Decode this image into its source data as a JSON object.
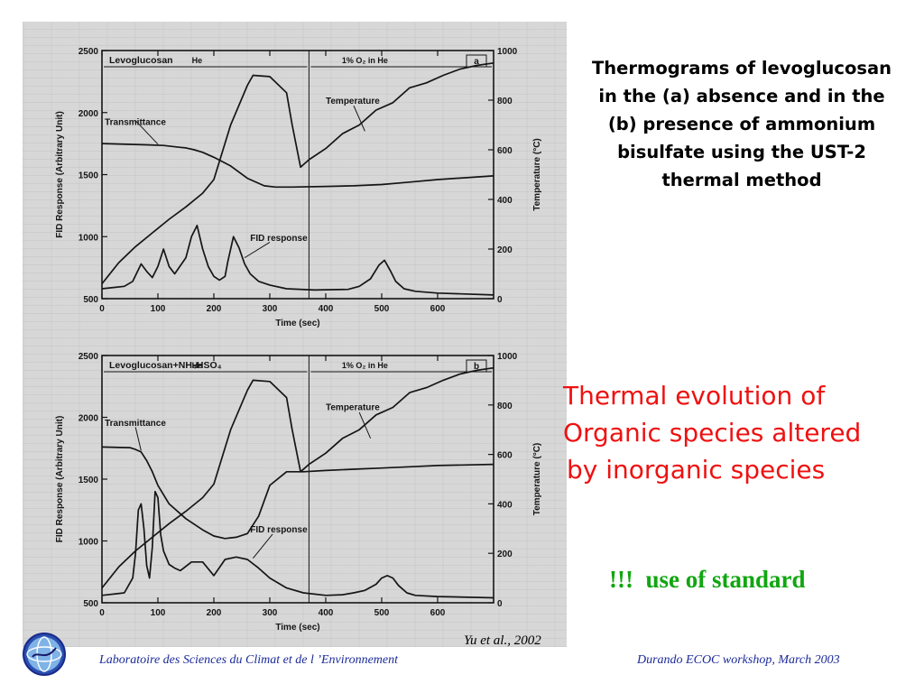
{
  "slide": {
    "title_lines": [
      "Thermograms of levoglucosan",
      "in the (a) absence and in the",
      "(b) presence of ammonium",
      "bisulfate using the UST-2",
      "thermal method"
    ],
    "red_lines": [
      "Thermal evolution of",
      "Organic species altered",
      "by inorganic species"
    ],
    "green_note": "!!!  use of standard",
    "citation": "Yu et al., 2002",
    "footer_left": "Laboratoire des Sciences du Climat et de l ’Environnement",
    "footer_right": "Durando ECOC workshop, March 2003",
    "logo_icon": "lsce-globe-logo-icon",
    "colors": {
      "title": "#000000",
      "red_text": "#ee1111",
      "green_text": "#11a611",
      "footer": "#1a2a9a",
      "scan_bg": "#d7d7d7"
    }
  },
  "chart_data": [
    {
      "type": "line",
      "panel": "a",
      "sample_label": "Levoglucosan",
      "phase_labels": [
        "He",
        "1% O₂ in He"
      ],
      "xlabel": "Time (sec)",
      "ylabel": "FID Response (Arbitrary Unit)",
      "y2label": "Temperature (°C)",
      "xlim": [
        0,
        700
      ],
      "ylim": [
        500,
        2500
      ],
      "y2lim": [
        0,
        1000
      ],
      "xticks": [
        0,
        100,
        200,
        300,
        400,
        500,
        600
      ],
      "yticks": [
        500,
        1000,
        1500,
        2000,
        2500
      ],
      "y2ticks": [
        0,
        200,
        400,
        600,
        800,
        1000
      ],
      "phase_change_x": 370,
      "annotations": [
        "Transmittance",
        "Temperature",
        "FID response"
      ],
      "series": [
        {
          "name": "Transmittance",
          "axis": "y",
          "x": [
            0,
            80,
            110,
            140,
            150,
            165,
            180,
            200,
            230,
            260,
            290,
            310,
            340,
            400,
            450,
            500,
            550,
            600,
            700
          ],
          "y": [
            1750,
            1740,
            1735,
            1720,
            1715,
            1700,
            1680,
            1640,
            1570,
            1470,
            1410,
            1400,
            1400,
            1405,
            1410,
            1420,
            1440,
            1460,
            1490
          ]
        },
        {
          "name": "Temperature",
          "axis": "y2",
          "x": [
            0,
            30,
            60,
            90,
            120,
            150,
            180,
            200,
            230,
            260,
            270,
            300,
            330,
            340,
            355,
            370,
            400,
            430,
            460,
            490,
            520,
            550,
            580,
            610,
            640,
            670,
            700
          ],
          "y": [
            60,
            145,
            210,
            265,
            320,
            370,
            425,
            480,
            700,
            860,
            900,
            895,
            830,
            700,
            530,
            560,
            605,
            665,
            700,
            760,
            790,
            850,
            870,
            900,
            925,
            940,
            950
          ]
        },
        {
          "name": "FID response",
          "axis": "y",
          "x": [
            0,
            40,
            55,
            70,
            80,
            90,
            100,
            110,
            120,
            130,
            150,
            160,
            170,
            180,
            190,
            200,
            210,
            220,
            225,
            235,
            245,
            255,
            265,
            280,
            300,
            330,
            380,
            440,
            460,
            480,
            495,
            505,
            515,
            525,
            540,
            560,
            600,
            700
          ],
          "y": [
            580,
            600,
            640,
            780,
            720,
            670,
            760,
            900,
            760,
            700,
            830,
            1000,
            1090,
            900,
            760,
            680,
            650,
            680,
            800,
            1000,
            910,
            780,
            700,
            640,
            610,
            580,
            570,
            575,
            600,
            660,
            770,
            810,
            730,
            640,
            580,
            560,
            545,
            530
          ]
        }
      ]
    },
    {
      "type": "line",
      "panel": "b",
      "sample_label": "Levoglucosan+NH₄HSO₄",
      "phase_labels": [
        "He",
        "1% O₂ in He"
      ],
      "xlabel": "Time (sec)",
      "ylabel": "FID Response (Arbitrary Unit)",
      "y2label": "Temperature (°C)",
      "xlim": [
        0,
        700
      ],
      "ylim": [
        500,
        2500
      ],
      "y2lim": [
        0,
        1000
      ],
      "xticks": [
        0,
        100,
        200,
        300,
        400,
        500,
        600
      ],
      "yticks": [
        500,
        1000,
        1500,
        2000,
        2500
      ],
      "y2ticks": [
        0,
        200,
        400,
        600,
        800,
        1000
      ],
      "phase_change_x": 370,
      "annotations": [
        "Transmittance",
        "Temperature",
        "FID response"
      ],
      "series": [
        {
          "name": "Transmittance",
          "axis": "y",
          "x": [
            0,
            50,
            60,
            70,
            80,
            90,
            100,
            120,
            150,
            180,
            200,
            220,
            240,
            260,
            280,
            300,
            330,
            360,
            400,
            450,
            500,
            550,
            600,
            700
          ],
          "y": [
            1760,
            1755,
            1740,
            1720,
            1650,
            1560,
            1450,
            1300,
            1180,
            1090,
            1040,
            1020,
            1030,
            1060,
            1200,
            1450,
            1560,
            1560,
            1570,
            1580,
            1590,
            1600,
            1610,
            1620
          ]
        },
        {
          "name": "Temperature",
          "axis": "y2",
          "x": [
            0,
            30,
            60,
            90,
            120,
            150,
            180,
            200,
            230,
            260,
            270,
            300,
            330,
            340,
            355,
            370,
            400,
            430,
            460,
            490,
            520,
            550,
            580,
            610,
            640,
            670,
            700
          ],
          "y": [
            60,
            145,
            210,
            265,
            320,
            370,
            425,
            480,
            700,
            860,
            900,
            895,
            830,
            700,
            530,
            560,
            605,
            665,
            700,
            760,
            790,
            850,
            870,
            900,
            925,
            940,
            950
          ]
        },
        {
          "name": "FID response",
          "axis": "y",
          "x": [
            0,
            40,
            55,
            60,
            65,
            70,
            75,
            80,
            85,
            90,
            95,
            100,
            105,
            110,
            120,
            130,
            140,
            160,
            180,
            200,
            220,
            240,
            250,
            260,
            280,
            300,
            330,
            360,
            400,
            430,
            450,
            470,
            490,
            500,
            510,
            520,
            530,
            545,
            560,
            600,
            700
          ],
          "y": [
            560,
            580,
            700,
            900,
            1250,
            1300,
            1100,
            800,
            700,
            950,
            1400,
            1350,
            1050,
            920,
            810,
            780,
            760,
            830,
            830,
            720,
            850,
            870,
            860,
            850,
            780,
            700,
            620,
            580,
            560,
            565,
            580,
            600,
            650,
            700,
            720,
            700,
            640,
            580,
            560,
            550,
            540
          ]
        }
      ]
    }
  ]
}
